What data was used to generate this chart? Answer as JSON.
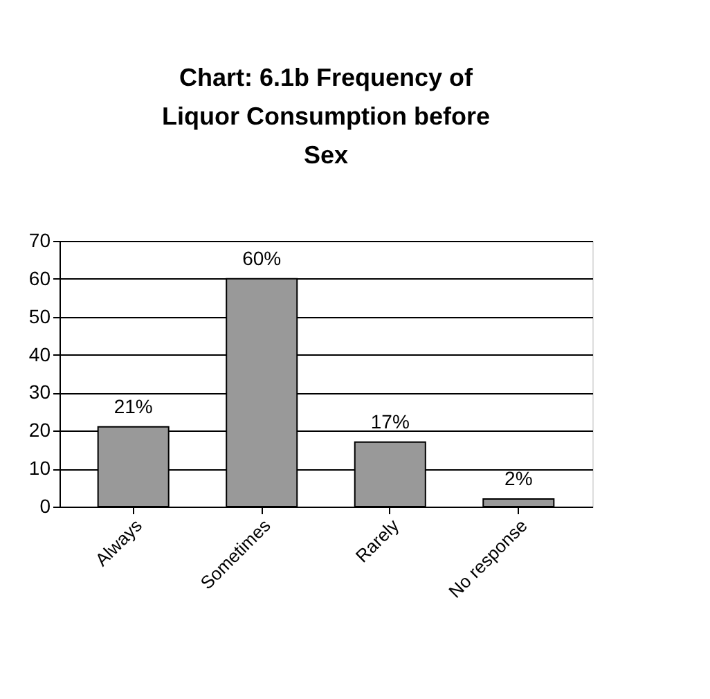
{
  "chart_data": {
    "type": "bar",
    "title": "Chart: 6.1b Frequency of Liquor Consumption before Sex",
    "categories": [
      "Always",
      "Sometimes",
      "Rarely",
      "No response"
    ],
    "values": [
      21,
      60,
      17,
      2
    ],
    "value_labels": [
      "21%",
      "60%",
      "17%",
      "2%"
    ],
    "color": "#999999",
    "ylim": [
      0,
      70
    ],
    "yticks": [
      0,
      10,
      20,
      30,
      40,
      50,
      60,
      70
    ],
    "grid": "y"
  }
}
